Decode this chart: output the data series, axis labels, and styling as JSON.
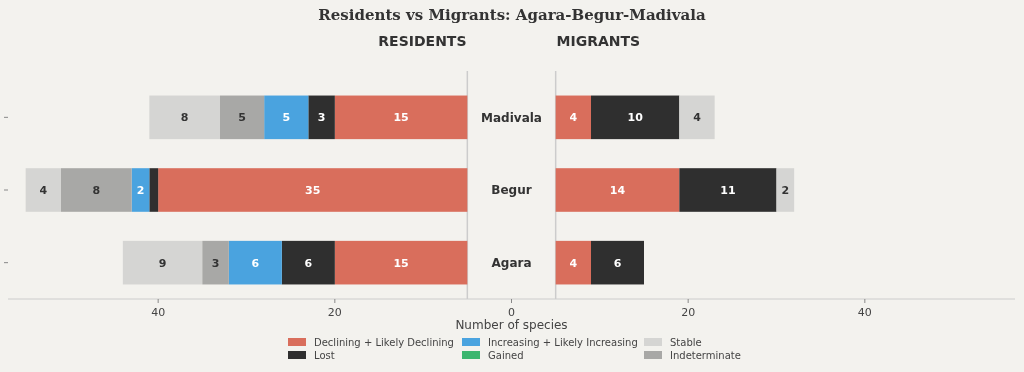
{
  "chart_data": {
    "type": "bar",
    "orientation": "horizontal",
    "title": "Residents vs Migrants: Agara-Begur-Madivala",
    "annotations": [
      "RESIDENTS",
      "MIGRANTS"
    ],
    "xlabel": "Number of species",
    "categories": [
      "Madivala",
      "Begur",
      "Agara"
    ],
    "xlim": [
      -57,
      57
    ],
    "xticks": [
      {
        "value": -40,
        "label": "40"
      },
      {
        "value": -20,
        "label": "20"
      },
      0,
      20,
      40
    ],
    "ref_lines": [
      {
        "axis": "x",
        "value": -5,
        "label": null,
        "color": "#cccccc"
      },
      {
        "axis": "x",
        "value": 5,
        "label": null,
        "color": "#cccccc"
      }
    ],
    "legend": "bottom",
    "grid": false,
    "series": [
      {
        "name": "Declining + Likely Declining",
        "color": "#d96e5c",
        "base": [
          -5,
          -5,
          -5
        ],
        "values": [
          -15,
          -35,
          -15
        ],
        "value_labels": [
          "15",
          "35",
          "15"
        ]
      },
      {
        "name": "Lost",
        "color": "#2f2f2f",
        "base": [
          -20,
          -40,
          -20
        ],
        "values": [
          -3,
          -1,
          -6
        ],
        "value_labels": [
          "3",
          null,
          "6"
        ]
      },
      {
        "name": "Increasing + Likely Increasing",
        "color": "#4aa3df",
        "base": [
          -23,
          -41,
          -26
        ],
        "values": [
          -5,
          -2,
          -6
        ],
        "value_labels": [
          "5",
          "2",
          "6"
        ]
      },
      {
        "name": "Gained",
        "color": "#3cb66f",
        "base": [
          null,
          null,
          null
        ],
        "values": [
          null,
          null,
          null
        ],
        "value_labels": [
          null,
          null,
          null
        ]
      },
      {
        "name": "Stable",
        "color": "#d5d5d3",
        "base": [
          -33,
          -51,
          -35
        ],
        "values": [
          -8,
          -4,
          -9
        ],
        "value_labels": [
          "8",
          "4",
          "9"
        ]
      },
      {
        "name": "Indeterminate",
        "color": "#a8a8a6",
        "base": [
          -28,
          -43,
          -32
        ],
        "values": [
          -5,
          -8,
          -3
        ],
        "value_labels": [
          "5",
          "8",
          "3"
        ]
      },
      {
        "color": "#d96e5c",
        "base": [
          5,
          5,
          5
        ],
        "values": [
          4,
          14,
          4
        ],
        "value_labels": [
          "4",
          "14",
          "4"
        ]
      },
      {
        "color": "#2f2f2f",
        "base": [
          9,
          19,
          9
        ],
        "values": [
          10,
          11,
          6
        ],
        "value_labels": [
          "10",
          "11",
          "6"
        ]
      },
      {
        "color": "#d5d5d3",
        "base": [
          19,
          30,
          null
        ],
        "values": [
          4,
          2,
          null
        ],
        "value_labels": [
          "4",
          "2",
          null
        ]
      }
    ]
  }
}
